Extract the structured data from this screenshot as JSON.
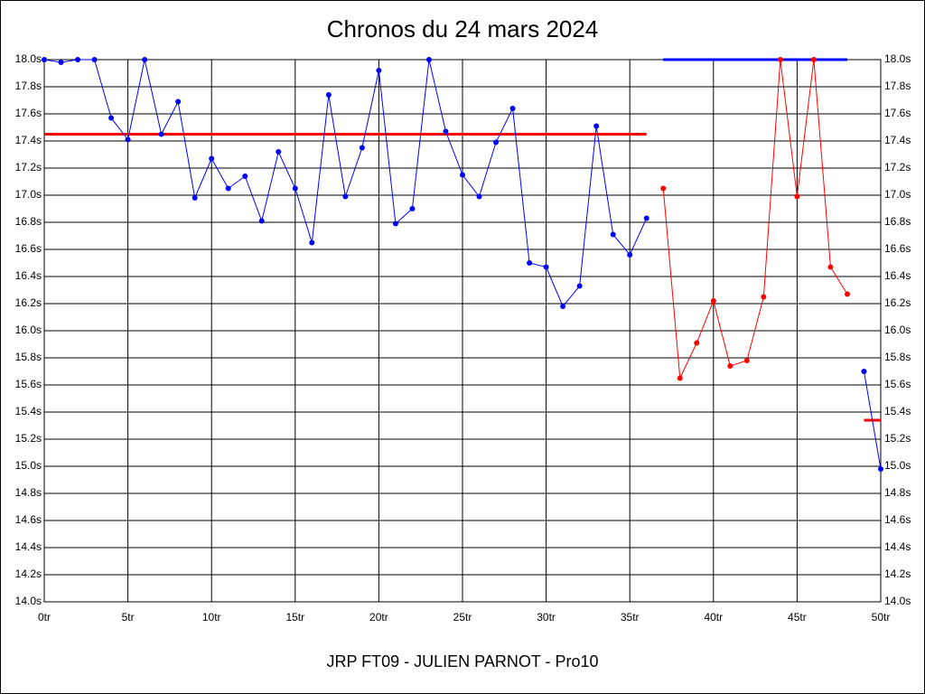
{
  "chart_data": {
    "type": "line",
    "title": "Chronos du 24 mars 2024",
    "x_label": "JRP FT09 - JULIEN PARNOT - Pro10",
    "x": [
      0,
      1,
      2,
      3,
      4,
      5,
      6,
      7,
      8,
      9,
      10,
      11,
      12,
      13,
      14,
      15,
      16,
      17,
      18,
      19,
      20,
      21,
      22,
      23,
      24,
      25,
      26,
      27,
      28,
      29,
      30,
      31,
      32,
      33,
      34,
      35,
      36,
      37,
      38,
      39,
      40,
      41,
      42,
      43,
      44,
      45,
      46,
      47,
      48,
      49,
      50
    ],
    "series": [
      {
        "color": "#0000ff",
        "values": [
          18.0,
          17.98,
          18.0,
          18.0,
          17.57,
          17.41,
          18.0,
          17.45,
          17.69,
          16.98,
          17.27,
          17.05,
          17.14,
          16.81,
          17.32,
          17.05,
          16.65,
          17.74,
          16.99,
          17.35,
          17.92,
          16.79,
          16.9,
          18.0,
          17.47,
          17.15,
          16.99,
          17.39,
          17.64,
          16.5,
          16.47,
          16.18,
          16.33,
          17.51,
          16.71,
          16.56,
          16.83,
          null,
          null,
          null,
          null,
          null,
          null,
          null,
          null,
          null,
          null,
          null,
          null,
          15.7,
          14.98
        ]
      },
      {
        "color": "#ff0000",
        "values": [
          null,
          null,
          null,
          null,
          null,
          null,
          null,
          null,
          null,
          null,
          null,
          null,
          null,
          null,
          null,
          null,
          null,
          null,
          null,
          null,
          null,
          null,
          null,
          null,
          null,
          null,
          null,
          null,
          null,
          null,
          null,
          null,
          null,
          null,
          null,
          null,
          null,
          17.05,
          15.65,
          15.91,
          16.22,
          15.74,
          15.78,
          16.25,
          18.0,
          16.99,
          18.0,
          16.47,
          16.27,
          null,
          null
        ]
      }
    ],
    "reference_lines": [
      {
        "y": 17.45,
        "x": [
          0,
          36
        ],
        "color": "#ff0000"
      },
      {
        "y": 18.0,
        "x": [
          37,
          48
        ],
        "color": "#0000ff"
      },
      {
        "y": 15.34,
        "x": [
          49,
          50
        ],
        "color": "#ff0000"
      }
    ],
    "xlim": [
      0,
      50
    ],
    "ylim": [
      14.0,
      18.0
    ],
    "xticks": [
      {
        "value": 0,
        "label": "0tr"
      },
      {
        "value": 5,
        "label": "5tr"
      },
      {
        "value": 10,
        "label": "10tr"
      },
      {
        "value": 15,
        "label": "15tr"
      },
      {
        "value": 20,
        "label": "20tr"
      },
      {
        "value": 25,
        "label": "25tr"
      },
      {
        "value": 30,
        "label": "30tr"
      },
      {
        "value": 35,
        "label": "35tr"
      },
      {
        "value": 40,
        "label": "40tr"
      },
      {
        "value": 45,
        "label": "45tr"
      },
      {
        "value": 50,
        "label": "50tr"
      }
    ],
    "yticks": [
      {
        "value": 14.0,
        "label": "14.0s"
      },
      {
        "value": 14.2,
        "label": "14.2s"
      },
      {
        "value": 14.4,
        "label": "14.4s"
      },
      {
        "value": 14.6,
        "label": "14.6s"
      },
      {
        "value": 14.8,
        "label": "14.8s"
      },
      {
        "value": 15.0,
        "label": "15.0s"
      },
      {
        "value": 15.2,
        "label": "15.2s"
      },
      {
        "value": 15.4,
        "label": "15.4s"
      },
      {
        "value": 15.6,
        "label": "15.6s"
      },
      {
        "value": 15.8,
        "label": "15.8s"
      },
      {
        "value": 16.0,
        "label": "16.0s"
      },
      {
        "value": 16.2,
        "label": "16.2s"
      },
      {
        "value": 16.4,
        "label": "16.4s"
      },
      {
        "value": 16.6,
        "label": "16.6s"
      },
      {
        "value": 16.8,
        "label": "16.8s"
      },
      {
        "value": 17.0,
        "label": "17.0s"
      },
      {
        "value": 17.2,
        "label": "17.2s"
      },
      {
        "value": 17.4,
        "label": "17.4s"
      },
      {
        "value": 17.6,
        "label": "17.6s"
      },
      {
        "value": 17.8,
        "label": "17.8s"
      },
      {
        "value": 18.0,
        "label": "18.0s"
      }
    ],
    "grid": true
  }
}
